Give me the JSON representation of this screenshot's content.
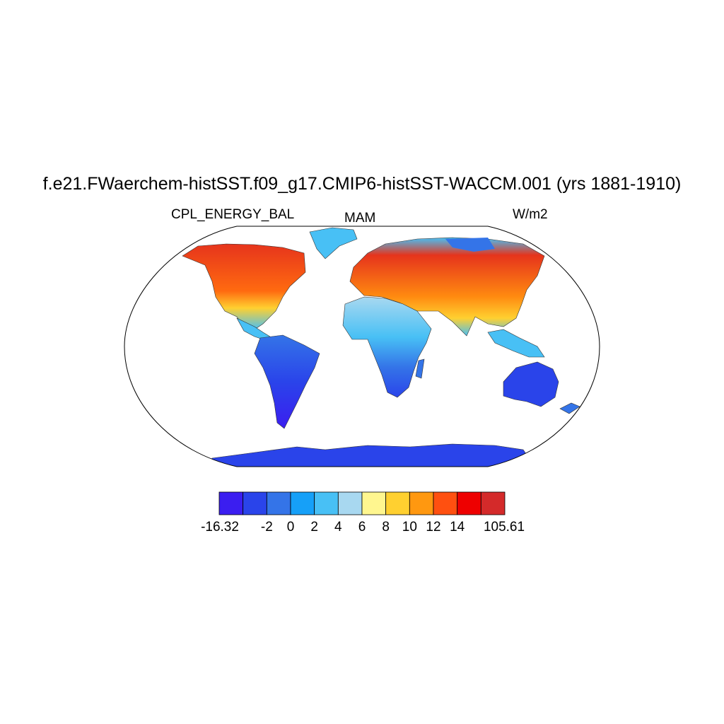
{
  "title": "f.e21.FWaerchem-histSST.f09_g17.CMIP6-histSST-WACCM.001 (yrs 1881-1910)",
  "left_label": "CPL_ENERGY_BAL",
  "center_label": "MAM",
  "right_label": "W/m2",
  "colorbar": {
    "colors": [
      "#3b1ef0",
      "#2a44ea",
      "#3474e8",
      "#16a0f8",
      "#48c0f5",
      "#a8d8f0",
      "#fff68f",
      "#ffd030",
      "#ff9810",
      "#ff5010",
      "#ee0000",
      "#d42a2a"
    ],
    "tick_labels": [
      "-16.32",
      "-2",
      "0",
      "2",
      "4",
      "6",
      "8",
      "10",
      "12",
      "14",
      "105.61"
    ]
  },
  "map_colors": {
    "ocean": "#ffffff",
    "north_america": "#e43a20",
    "south_america": "#3055e0",
    "europe_asia": "#e6341c",
    "africa": "#a8d8f0",
    "australia": "#2a44ea",
    "antarctica": "#2a44ea",
    "greenland": "#48c0f5"
  }
}
